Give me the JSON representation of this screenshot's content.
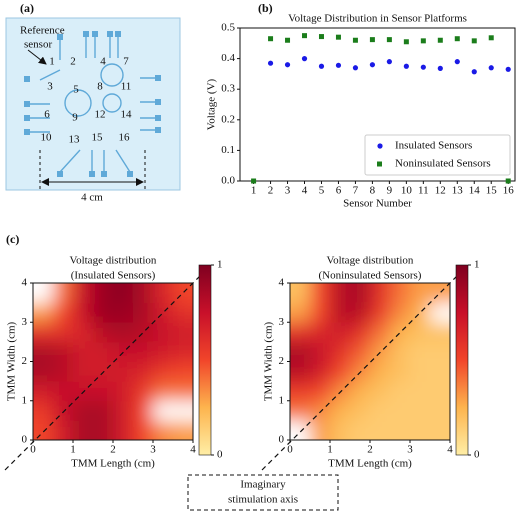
{
  "panel_labels": [
    "(a)",
    "(b)",
    "(c)"
  ],
  "diagram": {
    "reference_label": [
      "Reference",
      "sensor"
    ],
    "sensor_labels": [
      "1",
      "2",
      "3",
      "4",
      "5",
      "6",
      "7",
      "8",
      "9",
      "10",
      "11",
      "12",
      "13",
      "14",
      "15",
      "16"
    ],
    "scale_label": "4 cm"
  },
  "annotation": [
    "Imaginary",
    "stimulation axis"
  ],
  "chart_data": [
    {
      "type": "scatter",
      "title": "Voltage Distribution in Sensor Platforms",
      "xlabel": "Sensor Number",
      "ylabel": "Voltage (V)",
      "x": [
        1,
        2,
        3,
        4,
        5,
        6,
        7,
        8,
        9,
        10,
        11,
        12,
        13,
        14,
        15,
        16
      ],
      "xlim": [
        0.2,
        16.4
      ],
      "xticks": [
        1,
        2,
        3,
        4,
        5,
        6,
        7,
        8,
        9,
        10,
        11,
        12,
        13,
        14,
        15,
        16
      ],
      "ylim": [
        0,
        0.5
      ],
      "yticks": [
        {
          "value": 0,
          "label": "0.0"
        },
        0.1,
        0.2,
        0.3,
        0.4,
        0.5
      ],
      "legend": "lower right",
      "series": [
        {
          "name": "Insulated Sensors",
          "color": "#1a1ae6",
          "marker": "circle",
          "values": [
            null,
            0.385,
            0.38,
            0.4,
            0.375,
            0.378,
            0.37,
            0.38,
            0.39,
            0.375,
            0.372,
            0.368,
            0.39,
            0.357,
            0.37,
            0.365
          ]
        },
        {
          "name": "Noninsulated Sensors",
          "color": "#1b7d1b",
          "marker": "square",
          "values": [
            0,
            0.465,
            0.46,
            0.475,
            0.472,
            0.47,
            0.46,
            0.462,
            0.462,
            0.455,
            0.458,
            0.46,
            0.465,
            0.458,
            0.468,
            0
          ]
        }
      ]
    },
    {
      "type": "heatmap",
      "title": [
        "Voltage distribution",
        "(Insulated Sensors)"
      ],
      "xlabel": "TMM Length (cm)",
      "ylabel": "TMM Width (cm)",
      "x": [
        0.25,
        0.75,
        1.25,
        1.75,
        2.25,
        2.75,
        3.25,
        3.75
      ],
      "y": [
        0.25,
        0.75,
        1.25,
        1.75,
        2.25,
        2.75,
        3.25,
        3.75
      ],
      "z": [
        [
          0.5,
          0.7,
          0.85,
          0.85,
          0.7,
          0.5,
          0.35,
          0.3
        ],
        [
          0.55,
          0.75,
          0.85,
          0.85,
          0.7,
          0.5,
          null,
          null
        ],
        [
          0.7,
          0.75,
          0.75,
          0.75,
          0.7,
          0.55,
          0.4,
          0.4
        ],
        [
          0.85,
          0.8,
          0.7,
          0.7,
          0.7,
          0.65,
          0.55,
          0.5
        ],
        [
          0.85,
          0.8,
          0.7,
          0.7,
          0.75,
          0.75,
          0.7,
          0.65
        ],
        [
          0.6,
          0.6,
          0.65,
          0.8,
          0.85,
          0.8,
          0.75,
          0.7
        ],
        [
          0.3,
          0.5,
          0.75,
          0.9,
          0.9,
          0.85,
          0.7,
          0.6
        ],
        [
          null,
          0.4,
          0.75,
          0.9,
          0.95,
          0.85,
          0.65,
          0.5
        ]
      ],
      "xlim": [
        0,
        4
      ],
      "ylim": [
        0,
        4
      ],
      "xticks": [
        0,
        1,
        2,
        3,
        4
      ],
      "yticks": [
        0,
        1,
        2,
        3,
        4
      ],
      "clim": [
        0,
        1
      ],
      "cbar_ticks": [
        0,
        1
      ],
      "colormap": [
        "#ffeea6",
        "#fdb44e",
        "#f1452a",
        "#c8102a",
        "#7f0020"
      ]
    },
    {
      "type": "heatmap",
      "title": [
        "Voltage distribution",
        "(Noninsulated Sensors)"
      ],
      "xlabel": "TMM Length (cm)",
      "ylabel": "TMM Width (cm)",
      "x": [
        0.25,
        0.75,
        1.25,
        1.75,
        2.25,
        2.75,
        3.25,
        3.75
      ],
      "y": [
        0.25,
        0.75,
        1.25,
        1.75,
        2.25,
        2.75,
        3.25,
        3.75
      ],
      "z": [
        [
          null,
          0.3,
          0.2,
          0.15,
          0.15,
          0.15,
          0.15,
          0.15
        ],
        [
          0.4,
          0.35,
          0.25,
          0.2,
          0.15,
          0.15,
          0.15,
          0.15
        ],
        [
          0.55,
          0.5,
          0.35,
          0.25,
          0.2,
          0.15,
          0.15,
          0.15
        ],
        [
          0.8,
          0.7,
          0.5,
          0.35,
          0.25,
          0.2,
          0.15,
          0.15
        ],
        [
          0.85,
          0.75,
          0.6,
          0.45,
          0.3,
          0.2,
          0.15,
          0.15
        ],
        [
          0.6,
          0.65,
          0.7,
          0.6,
          0.4,
          0.25,
          0.2,
          0.2
        ],
        [
          0.3,
          0.5,
          0.8,
          0.8,
          0.55,
          0.35,
          0.25,
          null
        ],
        [
          0.2,
          0.5,
          0.8,
          0.85,
          0.6,
          0.4,
          0.3,
          0.3
        ]
      ],
      "xlim": [
        0,
        4
      ],
      "ylim": [
        0,
        4
      ],
      "xticks": [
        0,
        1,
        2,
        3,
        4
      ],
      "yticks": [
        0,
        1,
        2,
        3,
        4
      ],
      "clim": [
        0,
        1
      ],
      "cbar_ticks": [
        0,
        1
      ],
      "colormap": [
        "#ffeea6",
        "#fdb44e",
        "#f1452a",
        "#c8102a",
        "#7f0020"
      ]
    }
  ]
}
